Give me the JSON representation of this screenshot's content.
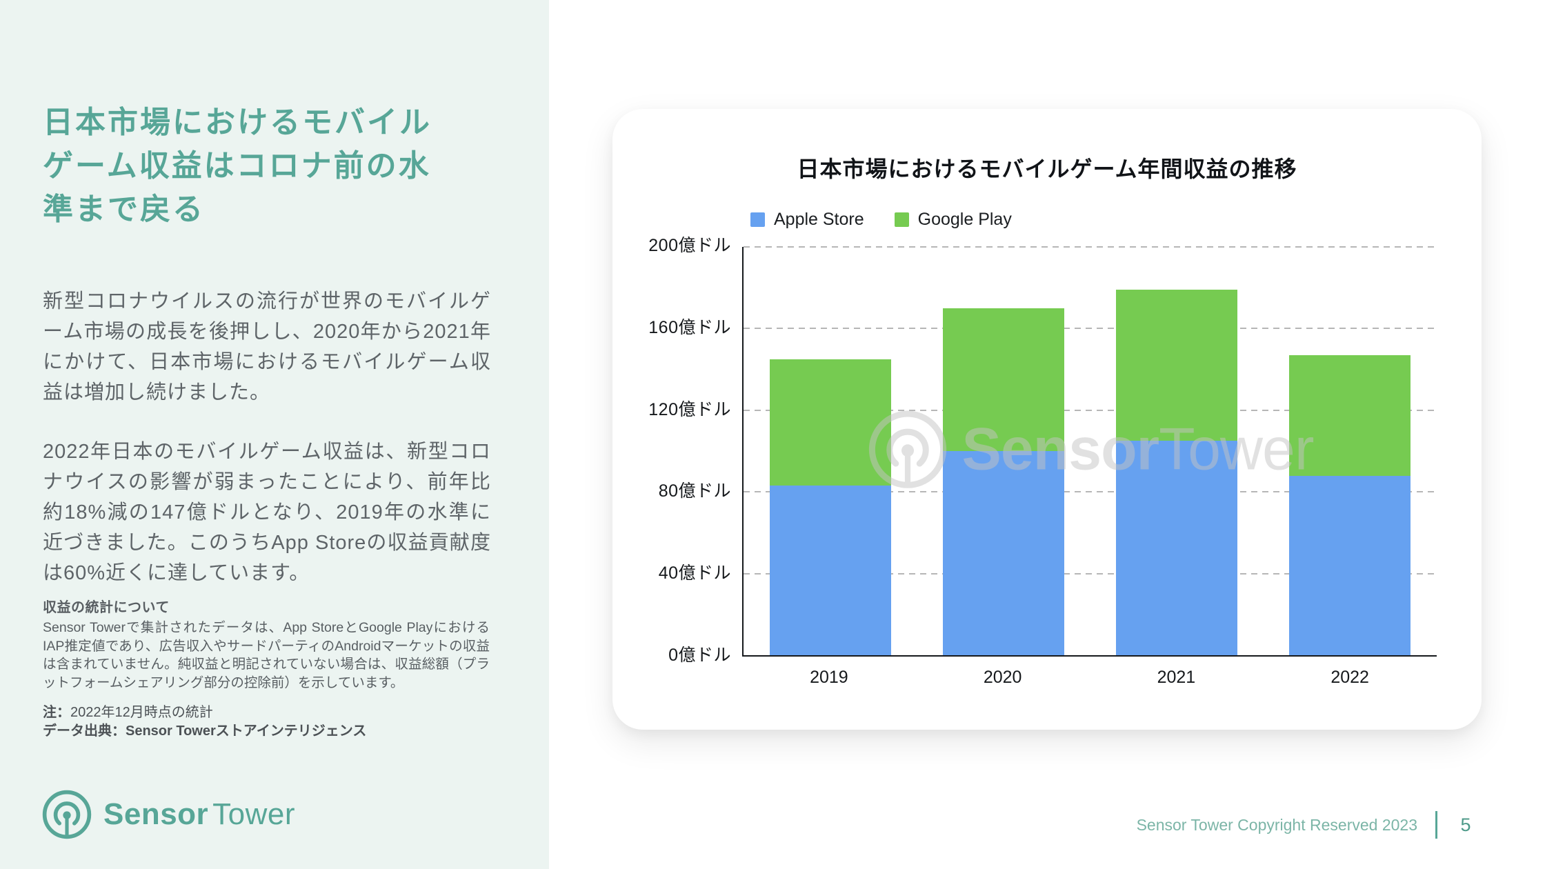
{
  "sidebar": {
    "title": "日本市場におけるモバイル\nゲーム収益はコロナ前の水\n準まで戻る",
    "paragraph_1": "新型コロナウイルスの流行が世界のモバイルゲーム市場の成長を後押しし、2020年から2021年にかけて、日本市場におけるモバイルゲーム収益は増加し続けました。",
    "paragraph_2": "2022年日本のモバイルゲーム収益は、新型コロナウイスの影響が弱まったことにより、前年比約18%減の147億ドルとなり、2019年の水準に近づきました。このうちApp Storeの収益貢献度は60%近くに達しています。",
    "note_heading": "収益の統計について",
    "note_body": "Sensor Towerで集計されたデータは、App StoreとGoogle PlayにおけるIAP推定値であり、広告収入やサードパーティのAndroidマーケットの収益は含まれていません。純収益と明記されていない場合は、収益総額（プラットフォームシェアリング部分の控除前）を示しています。",
    "footnote_label": "注：",
    "footnote_text": "2022年12月時点の統計",
    "source_line": "データ出典：Sensor Towerストアインテリジェンス"
  },
  "brand": {
    "word_1": "Sensor",
    "word_2": "Tower"
  },
  "footer": {
    "copyright": "Sensor Tower Copyright Reserved 2023",
    "page_number": "5"
  },
  "chart_data": {
    "type": "bar",
    "stacked": true,
    "title": "日本市場におけるモバイルゲーム年間収益の推移",
    "categories": [
      "2019",
      "2020",
      "2021",
      "2022"
    ],
    "series": [
      {
        "name": "Apple Store",
        "color": "#66A1F0",
        "values": [
          83,
          100,
          105,
          88
        ]
      },
      {
        "name": "Google Play",
        "color": "#76CB51",
        "values": [
          62,
          70,
          74,
          59
        ]
      }
    ],
    "totals_billion_usd": [
      145,
      170,
      179,
      147
    ],
    "unit": "億ドル",
    "ylim": [
      0,
      200
    ],
    "ytick_step": 40,
    "ytick_suffix": "億ドル",
    "grid": "horizontal-dashed",
    "legend_position": "top-left",
    "watermark": {
      "word_1": "Sensor",
      "word_2": "Tower"
    }
  },
  "colors": {
    "accent_teal": "#57A697",
    "sidebar_bg": "#ECF4F1",
    "text_gray": "#5E6468",
    "note_gray": "#585E62",
    "apple_blue": "#66A1F0",
    "google_green": "#76CB51",
    "footer_teal": "#7CB5A7",
    "page_number_teal": "#4E9A89",
    "watermark_gray": "#C4C4C4"
  }
}
